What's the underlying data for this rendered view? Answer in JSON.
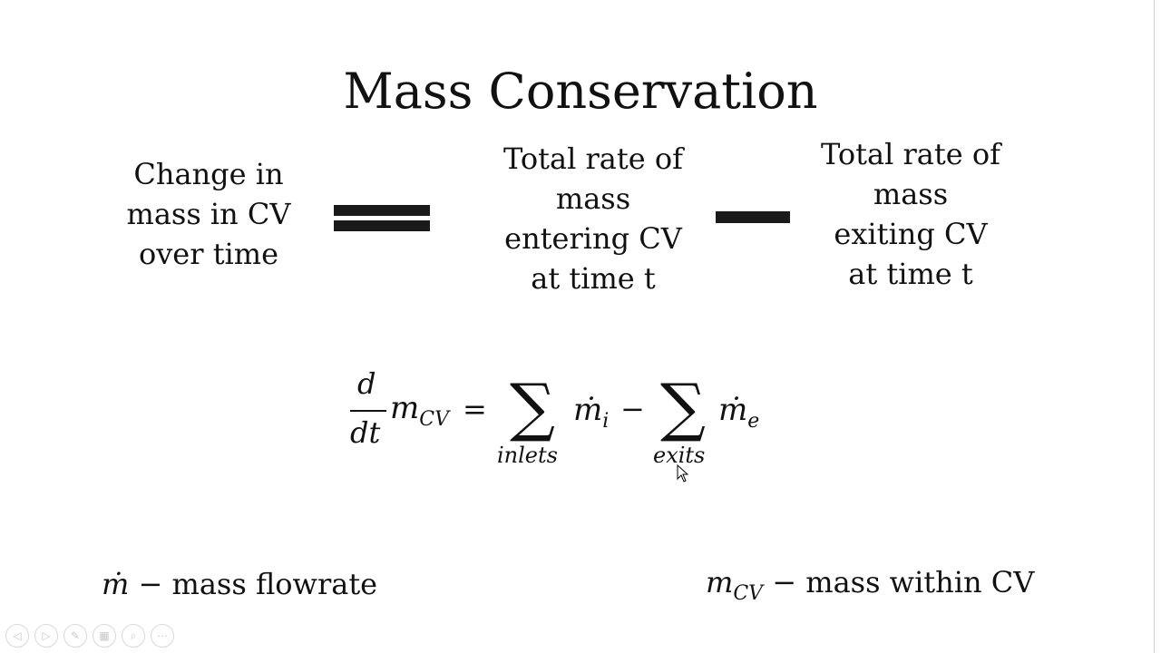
{
  "slide": {
    "title": "Mass Conservation",
    "terms": {
      "change": [
        "Change in",
        "mass in CV",
        "over time"
      ],
      "entering": [
        "Total rate of",
        "mass",
        "entering CV",
        "at time t"
      ],
      "exiting": [
        "Total rate of",
        "mass",
        "exiting CV",
        "at time t"
      ]
    },
    "equation": {
      "numerator": "d",
      "denominator": "dt",
      "m": "m",
      "m_sub": "CV",
      "equals": "=",
      "sum_symbol": "∑",
      "sum1_limit": "inlets",
      "mdot": "ṁ",
      "mdot_i_sub": "i",
      "minus": "−",
      "sum2_limit": "exits",
      "mdot_e_sub": "e"
    },
    "legend": {
      "left_symbol": "ṁ",
      "left_text": " − mass flowrate",
      "right_symbol": "m",
      "right_symbol_sub": "CV",
      "right_text": " − mass within CV"
    }
  },
  "toolbar": {
    "icons": [
      "previous-icon",
      "next-icon",
      "pen-icon",
      "slides-icon",
      "zoom-icon",
      "more-icon"
    ],
    "glyphs": [
      "◁",
      "▷",
      "✎",
      "▦",
      "⌕",
      "⋯"
    ]
  }
}
